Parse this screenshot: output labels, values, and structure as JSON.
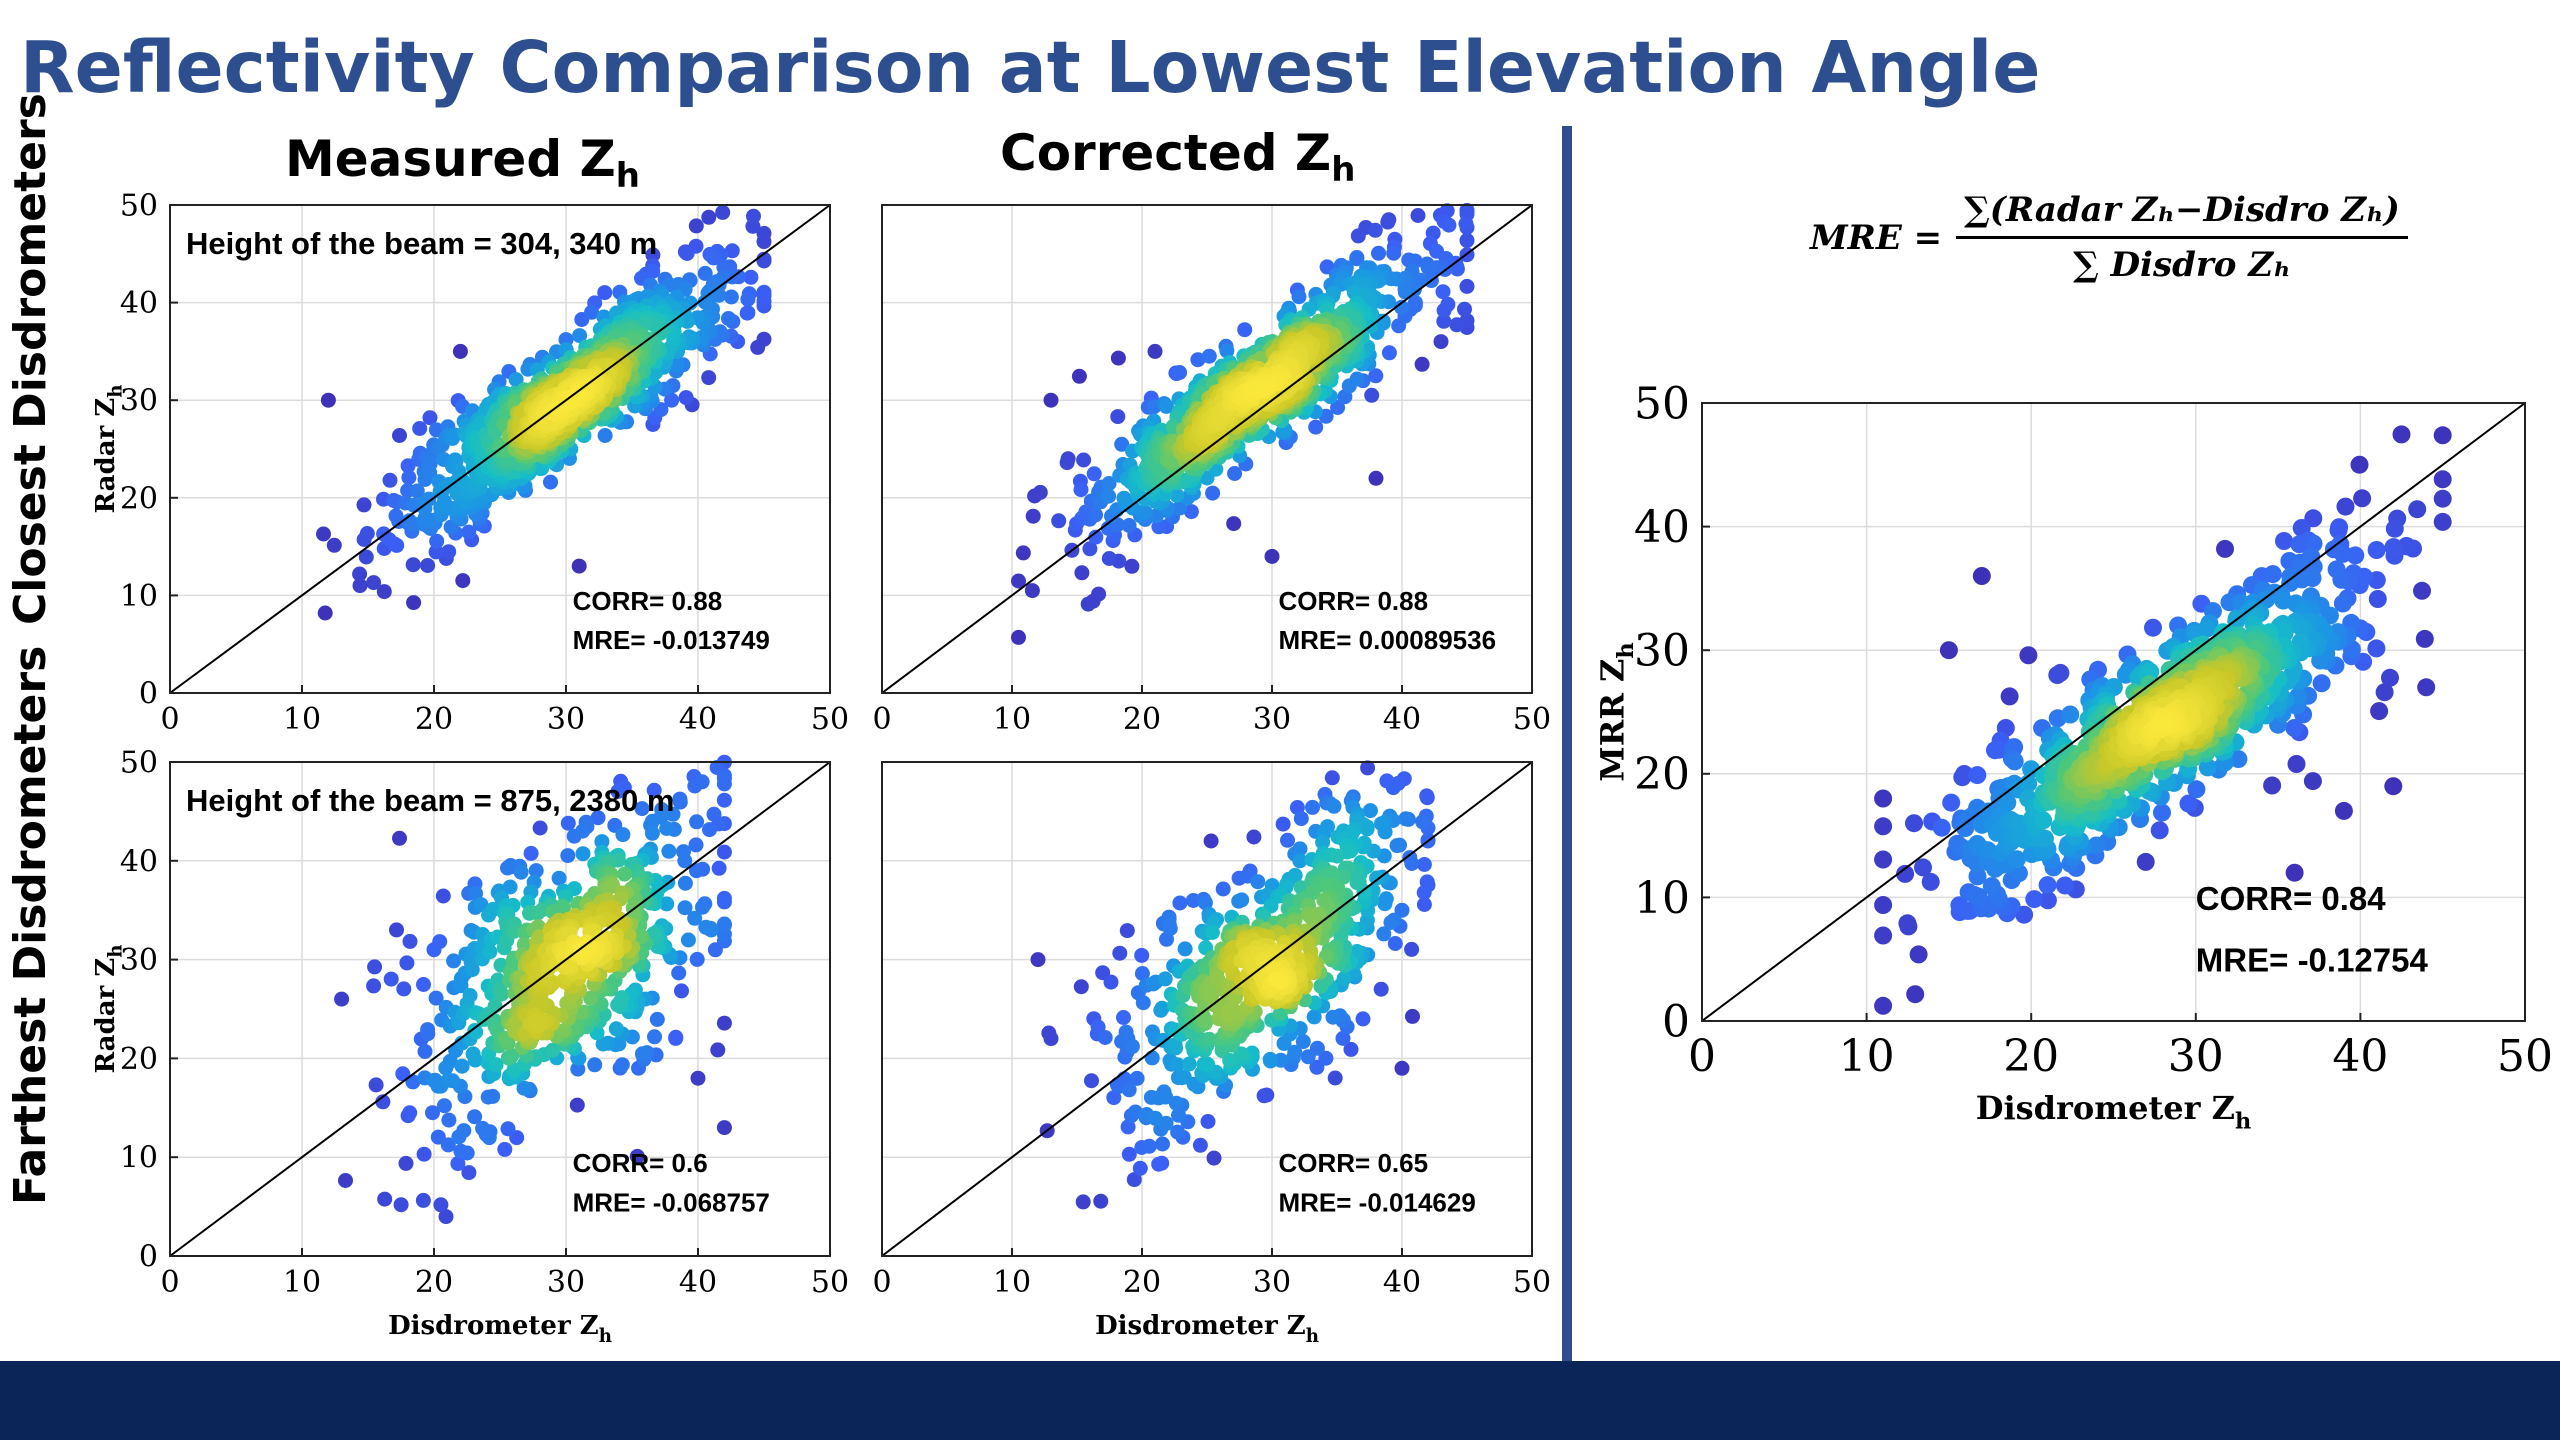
{
  "slide": {
    "title": "Reflectivity Comparison at Lowest Elevation Angle",
    "col_measured": "Measured Z",
    "col_corrected": "Corrected Z",
    "col_sub": "h",
    "row_closest": "Closest Disdrometers",
    "row_farthest": "Farthest Disdrometers",
    "formula": {
      "lhs": "MRE =",
      "numerator": "∑(Radar Zₕ−Disdro Zₕ)",
      "denominator": "∑ Disdro Zₕ"
    }
  },
  "colors": {
    "title": "#2e4f8f",
    "divider": "#2f4d8e",
    "footer": "#0b2559",
    "density_low": "#3e26a8",
    "density_mid": "#1fb4d3",
    "density_high": "#f9e73a"
  },
  "chart_data": [
    {
      "type": "scatter",
      "panel": "closest-measured",
      "xlim": [
        0,
        50
      ],
      "ylim": [
        0,
        50
      ],
      "xticks": [
        "0",
        "10",
        "20",
        "30",
        "40",
        "50"
      ],
      "yticks": [
        "0",
        "10",
        "20",
        "30",
        "40",
        "50"
      ],
      "xlabel": "",
      "ylabel": "Radar Z",
      "ylabel_sub": "h",
      "grid": true,
      "reference_line": "1:1",
      "annotation_top": "Height of the beam = 304, 340 m",
      "corr_text": "CORR= 0.88",
      "mre_text": "MRE= -0.013749",
      "point_cloud": {
        "n": 900,
        "x_range": [
          10.5,
          45
        ],
        "center": [
          30,
          30
        ],
        "slope": 0.95,
        "spread": 2.6
      },
      "outliers": [
        [
          12,
          30
        ],
        [
          22,
          35
        ],
        [
          38,
          30
        ],
        [
          31,
          13
        ],
        [
          28,
          23
        ],
        [
          43,
          36
        ]
      ]
    },
    {
      "type": "scatter",
      "panel": "closest-corrected",
      "xlim": [
        0,
        50
      ],
      "ylim": [
        0,
        50
      ],
      "xticks": [
        "0",
        "10",
        "20",
        "30",
        "40",
        "50"
      ],
      "yticks": [],
      "xlabel": "",
      "ylabel": "",
      "grid": true,
      "reference_line": "1:1",
      "annotation_top": "",
      "corr_text": "CORR= 0.88",
      "mre_text": "MRE= 0.00089536",
      "point_cloud": {
        "n": 900,
        "x_range": [
          10.5,
          45
        ],
        "center": [
          29,
          31
        ],
        "slope": 0.95,
        "spread": 2.6
      },
      "outliers": [
        [
          13,
          30
        ],
        [
          21,
          35
        ],
        [
          37,
          32
        ],
        [
          30,
          14
        ],
        [
          38,
          22
        ],
        [
          43,
          36
        ]
      ]
    },
    {
      "type": "scatter",
      "panel": "farthest-measured",
      "xlim": [
        0,
        50
      ],
      "ylim": [
        0,
        50
      ],
      "xticks": [
        "0",
        "10",
        "20",
        "30",
        "40",
        "50"
      ],
      "yticks": [
        "0",
        "10",
        "20",
        "30",
        "40",
        "50"
      ],
      "xlabel": "Disdrometer Z",
      "xlabel_sub": "h",
      "ylabel": "Radar Z",
      "ylabel_sub": "h",
      "grid": true,
      "reference_line": "1:1",
      "annotation_top": "Height of the beam = 875, 2380 m",
      "corr_text": "CORR= 0.6",
      "mre_text": "MRE= -0.068757",
      "point_cloud": {
        "n": 650,
        "x_range": [
          11.5,
          42
        ],
        "center": [
          30,
          30
        ],
        "slope": 0.85,
        "spread": 5.5
      },
      "outliers": [
        [
          20,
          31
        ],
        [
          13,
          26
        ],
        [
          41,
          33
        ],
        [
          42,
          13
        ],
        [
          40,
          18
        ],
        [
          39,
          40
        ]
      ]
    },
    {
      "type": "scatter",
      "panel": "farthest-corrected",
      "xlim": [
        0,
        50
      ],
      "ylim": [
        0,
        50
      ],
      "xticks": [
        "0",
        "10",
        "20",
        "30",
        "40",
        "50"
      ],
      "yticks": [],
      "xlabel": "Disdrometer Z",
      "xlabel_sub": "h",
      "ylabel": "",
      "grid": true,
      "reference_line": "1:1",
      "annotation_top": "",
      "corr_text": "CORR= 0.65",
      "mre_text": "MRE= -0.014629",
      "point_cloud": {
        "n": 650,
        "x_range": [
          11.5,
          42
        ],
        "center": [
          30,
          30
        ],
        "slope": 0.9,
        "spread": 4.8
      },
      "outliers": [
        [
          12,
          30
        ],
        [
          13,
          22
        ],
        [
          40,
          35
        ],
        [
          40,
          19
        ],
        [
          37,
          24
        ],
        [
          42,
          42
        ]
      ]
    },
    {
      "type": "scatter",
      "panel": "mrr",
      "xlim": [
        0,
        50
      ],
      "ylim": [
        0,
        50
      ],
      "xticks": [
        "0",
        "10",
        "20",
        "30",
        "40",
        "50"
      ],
      "yticks": [
        "0",
        "10",
        "20",
        "30",
        "40",
        "50"
      ],
      "xlabel": "Disdrometer Z",
      "xlabel_sub": "h",
      "ylabel": "MRR Z",
      "ylabel_sub": "h",
      "grid": true,
      "reference_line": "1:1",
      "annotation_top": "",
      "corr_text": "CORR= 0.84",
      "mre_text": "MRE= -0.12754",
      "point_cloud": {
        "n": 900,
        "x_range": [
          11,
          45
        ],
        "center": [
          28,
          24
        ],
        "slope": 0.85,
        "spread": 2.8
      },
      "outliers": [
        [
          17,
          36
        ],
        [
          15,
          30
        ],
        [
          11,
          18
        ],
        [
          19,
          21
        ],
        [
          36,
          12
        ],
        [
          39,
          17
        ],
        [
          42,
          19
        ],
        [
          44,
          27
        ]
      ]
    }
  ]
}
